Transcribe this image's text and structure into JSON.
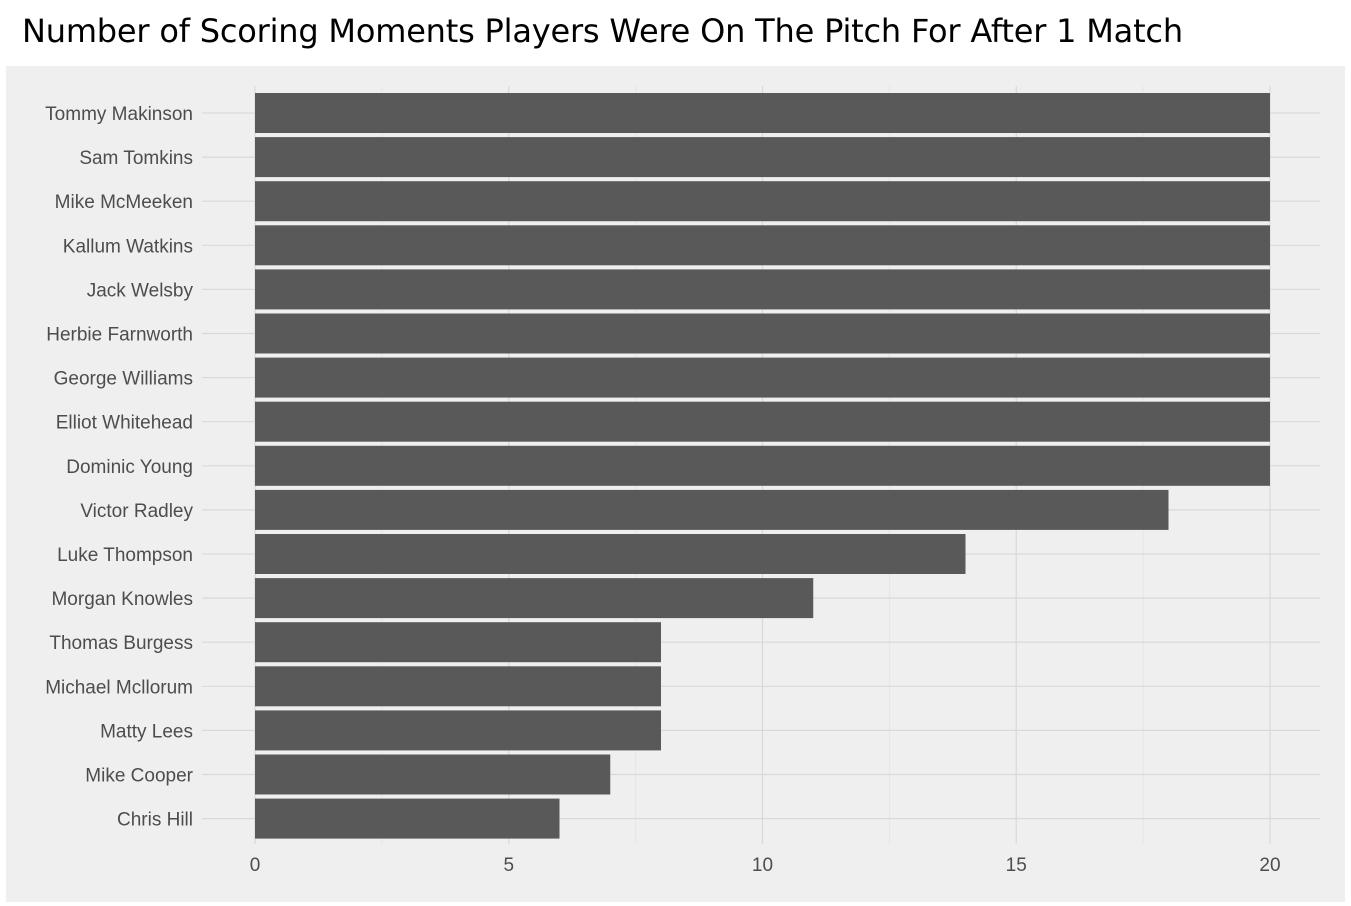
{
  "title": "Number of Scoring Moments Players Were On The Pitch For After 1 Match",
  "colors": {
    "panel_background": "#efefef",
    "bar": "#595959",
    "grid": "#d9d9d9",
    "tick_text": "#4d4d4d"
  },
  "chart_data": {
    "type": "bar",
    "orientation": "horizontal",
    "title": "Number of Scoring Moments Players Were On The Pitch For After 1 Match",
    "xlabel": "",
    "ylabel": "",
    "xlim": [
      0,
      21
    ],
    "x_ticks": [
      0,
      5,
      10,
      15,
      20
    ],
    "grid": true,
    "legend": "none",
    "categories": [
      "Tommy Makinson",
      "Sam Tomkins",
      "Mike McMeeken",
      "Kallum Watkins",
      "Jack Welsby",
      "Herbie Farnworth",
      "George Williams",
      "Elliot Whitehead",
      "Dominic Young",
      "Victor Radley",
      "Luke Thompson",
      "Morgan Knowles",
      "Thomas Burgess",
      "Michael Mcllorum",
      "Matty Lees",
      "Mike Cooper",
      "Chris Hill"
    ],
    "values": [
      20,
      20,
      20,
      20,
      20,
      20,
      20,
      20,
      20,
      18,
      14,
      11,
      8,
      8,
      8,
      7,
      6
    ]
  }
}
